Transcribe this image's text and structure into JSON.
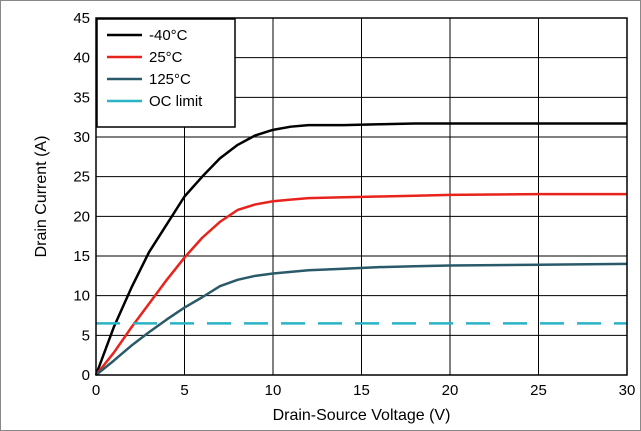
{
  "chart_data": {
    "type": "line",
    "title": "",
    "xlabel": "Drain-Source Voltage (V)",
    "ylabel": "Drain Current (A)",
    "xlim": [
      0,
      30
    ],
    "ylim": [
      0,
      45
    ],
    "xticks": [
      "0",
      "5",
      "10",
      "15",
      "20",
      "25",
      "30"
    ],
    "yticks": [
      "0",
      "5",
      "10",
      "15",
      "20",
      "25",
      "30",
      "35",
      "40",
      "45"
    ],
    "grid": true,
    "legend_position": "top-left",
    "series": [
      {
        "name": "-40°C",
        "color": "#000000",
        "style": "solid",
        "x": [
          0,
          1,
          2,
          3,
          4,
          5,
          6,
          7,
          8,
          9,
          10,
          11,
          12,
          14,
          16,
          18,
          20,
          25,
          30
        ],
        "y": [
          0,
          6,
          11,
          15.5,
          19,
          22.5,
          25,
          27.3,
          29,
          30.2,
          30.9,
          31.3,
          31.5,
          31.5,
          31.6,
          31.7,
          31.7,
          31.7,
          31.7
        ]
      },
      {
        "name": "25°C",
        "color": "#e8231c",
        "style": "solid",
        "x": [
          0,
          1,
          2,
          3,
          4,
          5,
          6,
          7,
          8,
          9,
          10,
          11,
          12,
          14,
          16,
          18,
          20,
          25,
          30
        ],
        "y": [
          0,
          2.8,
          6,
          9,
          12,
          14.8,
          17.3,
          19.3,
          20.8,
          21.5,
          21.9,
          22.1,
          22.3,
          22.4,
          22.5,
          22.6,
          22.7,
          22.8,
          22.8
        ]
      },
      {
        "name": "125°C",
        "color": "#2a5a6a",
        "style": "solid",
        "x": [
          0,
          1,
          2,
          3,
          4,
          5,
          6,
          7,
          8,
          9,
          10,
          11,
          12,
          14,
          16,
          18,
          20,
          25,
          30
        ],
        "y": [
          0,
          1.8,
          3.7,
          5.4,
          7,
          8.5,
          9.8,
          11.2,
          12,
          12.5,
          12.8,
          13,
          13.2,
          13.4,
          13.6,
          13.7,
          13.8,
          13.9,
          14
        ]
      },
      {
        "name": "OC limit",
        "color": "#2ab3c6",
        "style": "dashed",
        "x": [
          0,
          30
        ],
        "y": [
          6.5,
          6.5
        ]
      }
    ]
  }
}
